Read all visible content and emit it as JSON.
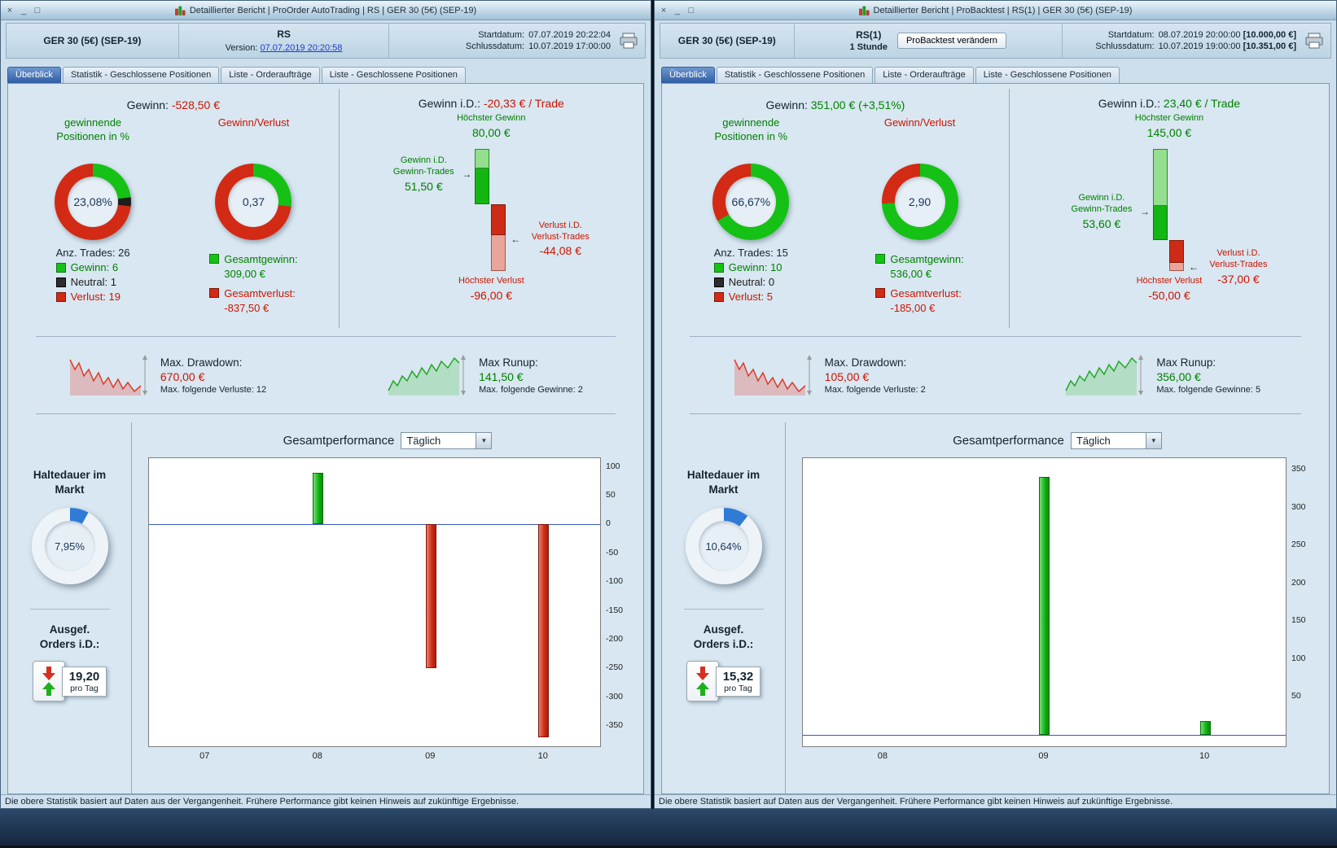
{
  "shared": {
    "tabs": [
      {
        "label": "Überblick"
      },
      {
        "label": "Statistik - Geschlossene Positionen"
      },
      {
        "label": "Liste - Orderaufträge"
      },
      {
        "label": "Liste - Geschlossene Positionen"
      }
    ],
    "status_text": "Die obere Statistik basiert auf Daten aus der Vergangenheit. Frühere Performance gibt keinen Hinweis auf zukünftige Ergebnisse.",
    "colors": {
      "green": "#008000",
      "red": "#cc1400",
      "link_blue": "#2238cc",
      "holding_blue": "#2e7cd6",
      "bar_green": "#14b614",
      "bar_red": "#cd2b15"
    }
  },
  "left": {
    "title": "Detaillierter Bericht | ProOrder AutoTrading | RS | GER 30 (5€) (SEP-19)",
    "header": {
      "instrument": "GER 30 (5€) (SEP-19)",
      "system": "RS",
      "version_label": "Version:",
      "version_link": "07.07.2019 20:20:58",
      "start_label": "Startdatum:",
      "start_value": "07.07.2019 20:22:04",
      "start_extra": "",
      "end_label": "Schlussdatum:",
      "end_value": "10.07.2019 17:00:00",
      "end_extra": ""
    },
    "overview": {
      "profit_label": "Gewinn:",
      "profit_value": "-528,50 €",
      "profit_color": "#cc1400",
      "winpct_title": "gewinnende Positionen in %",
      "winpct_value": "23,08%",
      "winpct_segments": [
        [
          "#14c114",
          23.1
        ],
        [
          "#1d1d1d",
          3.8
        ],
        [
          "#d22a14",
          73.1
        ]
      ],
      "trades_label": "Anz. Trades: 26",
      "legend": [
        {
          "label": "Gewinn: 6",
          "color": "#008000"
        },
        {
          "label": "Neutral: 1",
          "color": "#1d1d1d"
        },
        {
          "label": "Verlust: 19",
          "color": "#cc1400"
        }
      ],
      "ratio_title": "Gewinn/Verlust",
      "ratio_value": "0,37",
      "ratio_segments": [
        [
          "#14c114",
          27.0
        ],
        [
          "#d22a14",
          73.0
        ]
      ],
      "ratio_legend": [
        {
          "label": "Gesamtgewinn:",
          "value": "309,00 €",
          "color": "#008000"
        },
        {
          "label": "Gesamtverlust:",
          "value": "-837,50 €",
          "color": "#cc1400"
        }
      ]
    },
    "trade_stats": {
      "title_label": "Gewinn i.D.:",
      "title_value": "-20,33 € / Trade",
      "title_color": "#cc1400",
      "max_gain_label": "Höchster Gewinn",
      "max_gain_value": "80,00 €",
      "avg_gain_label": "Gewinn i.D. Gewinn-Trades",
      "avg_gain_value": "51,50 €",
      "avg_loss_label": "Verlust i.D. Verlust-Trades",
      "avg_loss_value": "-44,08 €",
      "max_loss_label": "Höchster Verlust",
      "max_loss_value": "-96,00 €",
      "max_gain": 80,
      "avg_gain": 51.5,
      "avg_loss": -44.08,
      "max_loss": -96
    },
    "drawdown": {
      "label": "Max. Drawdown:",
      "value": "670,00 €",
      "sub": "Max. folgende Verluste: 12"
    },
    "runup": {
      "label": "Max Runup:",
      "value": "141,50 €",
      "sub": "Max. folgende Gewinne: 2"
    },
    "performance": {
      "title": "Gesamtperformance",
      "period": "Täglich"
    },
    "holding": {
      "label": "Haltedauer im Markt",
      "value": "7,95%",
      "segments": [
        [
          "#2e7cd6",
          7.95
        ],
        [
          "#eef3f7",
          92.05
        ]
      ]
    },
    "orders": {
      "label": "Ausgef. Orders i.D.:",
      "value": "19,20",
      "sub": "pro Tag"
    },
    "chart": {
      "type": "bar",
      "categories": [
        "07",
        "08",
        "09",
        "10"
      ],
      "values": [
        0,
        90,
        -250,
        -370
      ],
      "yticks": [
        100,
        50,
        0,
        -50,
        -100,
        -150,
        -200,
        -250,
        -300,
        -350
      ],
      "ylim": [
        -385,
        115
      ],
      "title": "Gesamtperformance",
      "zero_line": true
    }
  },
  "right": {
    "title": "Detaillierter Bericht | ProBacktest | RS(1) | GER 30 (5€) (SEP-19)",
    "header": {
      "instrument": "GER 30 (5€) (SEP-19)",
      "system": "RS(1)",
      "system_sub": "1 Stunde",
      "button_label": "ProBacktest verändern",
      "start_label": "Startdatum:",
      "start_value": "08.07.2019 20:00:00",
      "start_extra": "[10.000,00 €]",
      "end_label": "Schlussdatum:",
      "end_value": "10.07.2019 19:00:00",
      "end_extra": "[10.351,00 €]"
    },
    "overview": {
      "profit_label": "Gewinn:",
      "profit_value": "351,00 € (+3,51%)",
      "profit_color": "#008000",
      "winpct_title": "gewinnende Positionen in %",
      "winpct_value": "66,67%",
      "winpct_segments": [
        [
          "#14c114",
          66.7
        ],
        [
          "#d22a14",
          33.3
        ]
      ],
      "trades_label": "Anz. Trades: 15",
      "legend": [
        {
          "label": "Gewinn: 10",
          "color": "#008000"
        },
        {
          "label": "Neutral: 0",
          "color": "#1d1d1d"
        },
        {
          "label": "Verlust: 5",
          "color": "#cc1400"
        }
      ],
      "ratio_title": "Gewinn/Verlust",
      "ratio_value": "2,90",
      "ratio_segments": [
        [
          "#14c114",
          74.3
        ],
        [
          "#d22a14",
          25.7
        ]
      ],
      "ratio_legend": [
        {
          "label": "Gesamtgewinn:",
          "value": "536,00 €",
          "color": "#008000"
        },
        {
          "label": "Gesamtverlust:",
          "value": "-185,00 €",
          "color": "#cc1400"
        }
      ]
    },
    "trade_stats": {
      "title_label": "Gewinn i.D.:",
      "title_value": "23,40 € / Trade",
      "title_color": "#008000",
      "max_gain_label": "Höchster Gewinn",
      "max_gain_value": "145,00 €",
      "avg_gain_label": "Gewinn i.D. Gewinn-Trades",
      "avg_gain_value": "53,60 €",
      "avg_loss_label": "Verlust i.D. Verlust-Trades",
      "avg_loss_value": "-37,00 €",
      "max_loss_label": "Höchster Verlust",
      "max_loss_value": "-50,00 €",
      "max_gain": 145,
      "avg_gain": 53.6,
      "avg_loss": -37,
      "max_loss": -50
    },
    "drawdown": {
      "label": "Max. Drawdown:",
      "value": "105,00 €",
      "sub": "Max. folgende Verluste: 2"
    },
    "runup": {
      "label": "Max Runup:",
      "value": "356,00 €",
      "sub": "Max. folgende Gewinne: 5"
    },
    "performance": {
      "title": "Gesamtperformance",
      "period": "Täglich"
    },
    "holding": {
      "label": "Haltedauer im Markt",
      "value": "10,64%",
      "segments": [
        [
          "#2e7cd6",
          10.64
        ],
        [
          "#eef3f7",
          89.36
        ]
      ]
    },
    "orders": {
      "label": "Ausgef. Orders i.D.:",
      "value": "15,32",
      "sub": "pro Tag"
    },
    "chart": {
      "type": "bar",
      "categories": [
        "08",
        "09",
        "10"
      ],
      "values": [
        0,
        340,
        18
      ],
      "yticks": [
        350,
        300,
        250,
        200,
        150,
        100,
        50
      ],
      "ylim": [
        -15,
        365
      ],
      "title": "Gesamtperformance",
      "zero_line": true
    }
  }
}
